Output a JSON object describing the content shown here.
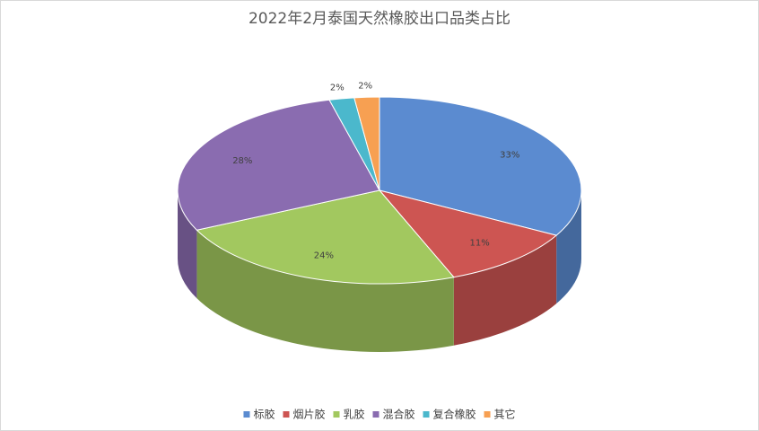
{
  "chart_data": {
    "type": "pie3d",
    "title": "2022年2月泰国天然橡胶出口品类占比",
    "categories": [
      "标胶",
      "烟片胶",
      "乳胶",
      "混合胶",
      "复合橡胶",
      "其它"
    ],
    "values": [
      33,
      11,
      24,
      28,
      2,
      2
    ],
    "value_labels": [
      "33%",
      "11%",
      "24%",
      "28%",
      "2%",
      "2%"
    ],
    "colors": [
      "#5b8bd0",
      "#cd5552",
      "#a2c85f",
      "#8a6cb0",
      "#4bb8cc",
      "#f7a052"
    ],
    "legend": "bottom"
  }
}
